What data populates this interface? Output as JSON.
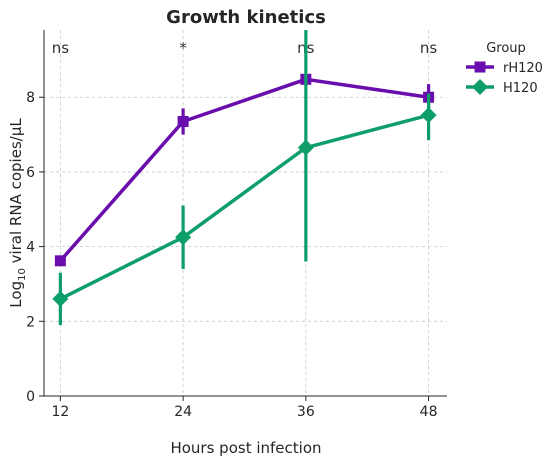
{
  "chart_data": {
    "type": "line",
    "title": "Growth kinetics",
    "xlabel": "Hours post infection",
    "ylabel_prefix": "Log",
    "ylabel_sub": "10",
    "ylabel_suffix": " viral RNA copies/µL",
    "x": [
      12,
      24,
      36,
      48
    ],
    "x_tick_labels": [
      "12",
      "24",
      "36",
      "48"
    ],
    "ylim": [
      0,
      9.8
    ],
    "y_ticks": [
      0,
      2,
      4,
      6,
      8
    ],
    "y_tick_labels": [
      "0",
      "2",
      "4",
      "6",
      "8"
    ],
    "grid": true,
    "legend_title": "Group",
    "legend_position": "outside-right",
    "series": [
      {
        "name": "rH120",
        "color": "#6a0dad",
        "marker": "square",
        "values": [
          3.62,
          7.35,
          8.48,
          8.0
        ],
        "err_low": [
          3.55,
          7.0,
          8.4,
          7.7
        ],
        "err_high": [
          3.7,
          7.7,
          8.6,
          8.35
        ]
      },
      {
        "name": "H120",
        "color": "#0d9e6a",
        "marker": "diamond",
        "values": [
          2.6,
          4.25,
          6.65,
          7.52
        ],
        "err_low": [
          1.9,
          3.4,
          3.6,
          6.85
        ],
        "err_high": [
          3.3,
          5.1,
          9.8,
          8.1
        ]
      }
    ],
    "significance": [
      "ns",
      "*",
      "ns",
      "ns"
    ]
  }
}
